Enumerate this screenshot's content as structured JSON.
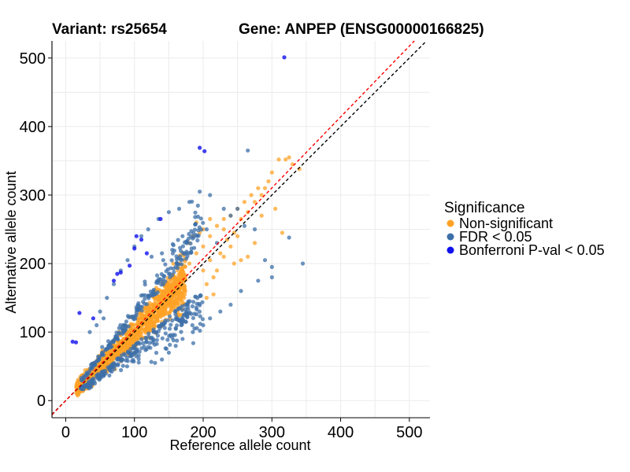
{
  "chart_data": {
    "type": "scatter",
    "title_variant": "Variant: rs25654",
    "title_gene": "Gene: ANPEP (ENSG00000166825)",
    "xlabel": "Reference allele count",
    "ylabel": "Alternative allele count",
    "xlim": [
      -20,
      530
    ],
    "ylim": [
      -25,
      525
    ],
    "x_ticks": [
      0,
      100,
      200,
      300,
      400,
      500
    ],
    "y_ticks": [
      0,
      100,
      200,
      300,
      400,
      500
    ],
    "x_tick_labels": [
      "0",
      "100",
      "200",
      "300",
      "400",
      "500"
    ],
    "y_tick_labels": [
      "0",
      "100",
      "200",
      "300",
      "400",
      "500"
    ],
    "grid": true,
    "reference_lines": [
      {
        "name": "identity",
        "style": "dashed",
        "color": "#000000",
        "slope": 1.0,
        "intercept": 0
      },
      {
        "name": "fitted",
        "style": "dashed",
        "color": "#ff0000",
        "slope": 1.035,
        "intercept": 0
      }
    ],
    "legend": {
      "title": "Significance",
      "position": "right",
      "entries": [
        {
          "label": "Non-significant",
          "color": "#ffa126"
        },
        {
          "label": "FDR < 0.05",
          "color": "#3c6fa8"
        },
        {
          "label": "Bonferroni P-val < 0.05",
          "color": "#1010ee"
        }
      ]
    },
    "series": [
      {
        "name": "Non-significant",
        "color": "#ffa126",
        "generated": {
          "count": 1250,
          "x_range": [
            15,
            175
          ],
          "spread": 0.09,
          "seed": 7
        },
        "points": [
          [
            180,
            200
          ],
          [
            190,
            215
          ],
          [
            200,
            225
          ],
          [
            210,
            240
          ],
          [
            220,
            255
          ],
          [
            230,
            250
          ],
          [
            240,
            270
          ],
          [
            250,
            280
          ],
          [
            260,
            290
          ],
          [
            270,
            300
          ],
          [
            280,
            310
          ],
          [
            200,
            190
          ],
          [
            210,
            205
          ],
          [
            225,
            215
          ],
          [
            235,
            235
          ],
          [
            245,
            245
          ],
          [
            255,
            265
          ],
          [
            265,
            275
          ],
          [
            275,
            290
          ],
          [
            285,
            300
          ],
          [
            295,
            320
          ],
          [
            300,
            333
          ],
          [
            310,
            352
          ],
          [
            320,
            352
          ],
          [
            325,
            355
          ],
          [
            330,
            345
          ],
          [
            340,
            338
          ],
          [
            290,
            310
          ],
          [
            205,
            170
          ],
          [
            215,
            180
          ],
          [
            195,
            245
          ],
          [
            180,
            230
          ],
          [
            170,
            215
          ],
          [
            185,
            240
          ],
          [
            230,
            210
          ],
          [
            240,
            225
          ],
          [
            250,
            240
          ],
          [
            220,
            190
          ],
          [
            215,
            155
          ],
          [
            205,
            150
          ],
          [
            230,
            265
          ],
          [
            255,
            205
          ],
          [
            245,
            200
          ],
          [
            190,
            260
          ],
          [
            200,
            250
          ],
          [
            210,
            265
          ],
          [
            265,
            210
          ],
          [
            275,
            230
          ],
          [
            315,
            245
          ],
          [
            305,
            280
          ],
          [
            285,
            270
          ],
          [
            20,
            20
          ],
          [
            30,
            25
          ],
          [
            25,
            15
          ],
          [
            40,
            50
          ]
        ]
      },
      {
        "name": "FDR < 0.05",
        "color": "#3c6fa8",
        "generated": {
          "count": 500,
          "x_range": [
            20,
            200
          ],
          "spread": 0.24,
          "seed": 11
        },
        "points": [
          [
            265,
            365
          ],
          [
            195,
            305
          ],
          [
            180,
            290
          ],
          [
            210,
            300
          ],
          [
            230,
            280
          ],
          [
            240,
            270
          ],
          [
            250,
            280
          ],
          [
            260,
            255
          ],
          [
            275,
            250
          ],
          [
            290,
            205
          ],
          [
            300,
            195
          ],
          [
            325,
            238
          ],
          [
            300,
            180
          ],
          [
            280,
            175
          ],
          [
            255,
            160
          ],
          [
            240,
            140
          ],
          [
            225,
            130
          ],
          [
            210,
            120
          ],
          [
            200,
            110
          ],
          [
            185,
            100
          ],
          [
            170,
            90
          ],
          [
            160,
            80
          ],
          [
            150,
            70
          ],
          [
            140,
            60
          ],
          [
            130,
            55
          ],
          [
            55,
            120
          ],
          [
            45,
            110
          ],
          [
            35,
            100
          ],
          [
            50,
            130
          ],
          [
            60,
            150
          ],
          [
            70,
            170
          ],
          [
            80,
            190
          ],
          [
            90,
            205
          ],
          [
            100,
            225
          ],
          [
            110,
            240
          ],
          [
            120,
            250
          ],
          [
            135,
            265
          ],
          [
            150,
            275
          ],
          [
            165,
            280
          ],
          [
            205,
            250
          ],
          [
            220,
            230
          ],
          [
            345,
            200
          ],
          [
            170,
            240
          ],
          [
            155,
            220
          ],
          [
            140,
            215
          ],
          [
            125,
            210
          ]
        ]
      },
      {
        "name": "Bonferroni P-val < 0.05",
        "color": "#1010ee",
        "points": [
          [
            318,
            501
          ],
          [
            195,
            369
          ],
          [
            202,
            364
          ],
          [
            110,
            235
          ],
          [
            103,
            240
          ],
          [
            100,
            222
          ],
          [
            93,
            197
          ],
          [
            80,
            187
          ],
          [
            75,
            185
          ],
          [
            70,
            175
          ],
          [
            20,
            128
          ],
          [
            15,
            85
          ],
          [
            10,
            86
          ],
          [
            40,
            120
          ],
          [
            118,
            215
          ],
          [
            138,
            265
          ]
        ]
      }
    ]
  }
}
